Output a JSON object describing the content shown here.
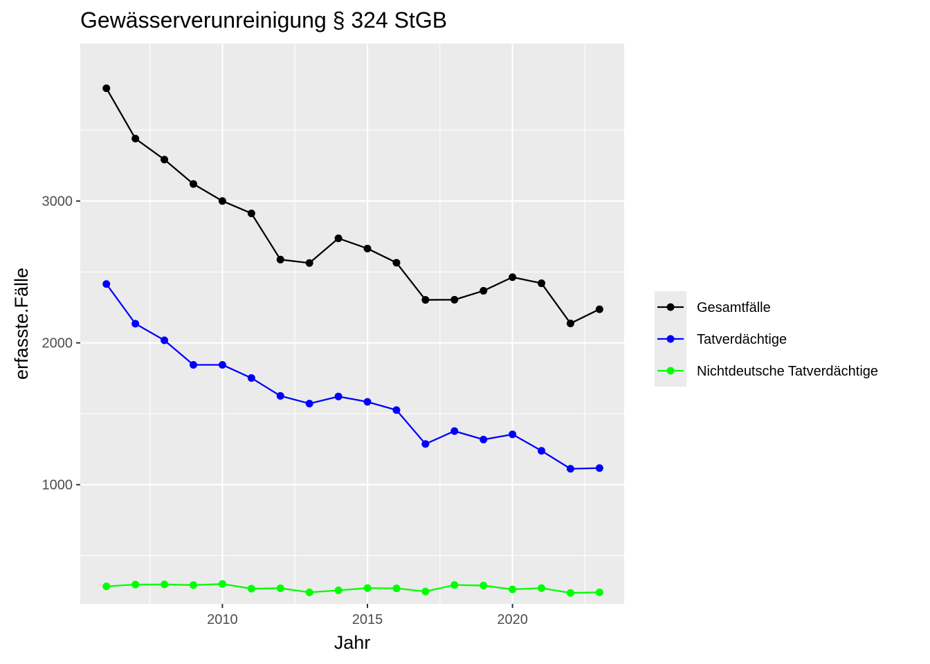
{
  "chart_data": {
    "type": "line",
    "title": "Gewässerverunreinigung § 324 StGB",
    "xlabel": "Jahr",
    "ylabel": "erfasste.Fälle",
    "x": [
      2006,
      2007,
      2008,
      2009,
      2010,
      2011,
      2012,
      2013,
      2014,
      2015,
      2016,
      2017,
      2018,
      2019,
      2020,
      2021,
      2022,
      2023
    ],
    "xlim": [
      2005.1,
      2023.85
    ],
    "ylim": [
      160,
      4110
    ],
    "x_ticks": [
      2010,
      2015,
      2020
    ],
    "x_tick_labels": [
      "2010",
      "2015",
      "2020"
    ],
    "y_ticks": [
      1000,
      2000,
      3000
    ],
    "y_tick_labels": [
      "1000",
      "2000",
      "3000"
    ],
    "grid": true,
    "legend_position": "right",
    "series": [
      {
        "name": "Gesamtfälle",
        "color": "#000000",
        "values": [
          3795,
          3440,
          3292,
          3120,
          3000,
          2913,
          2587,
          2563,
          2737,
          2665,
          2565,
          2303,
          2304,
          2367,
          2463,
          2420,
          2137,
          2237
        ]
      },
      {
        "name": "Tatverdächtige",
        "color": "#0000ff",
        "values": [
          2415,
          2135,
          2018,
          1845,
          1845,
          1752,
          1626,
          1572,
          1622,
          1584,
          1526,
          1287,
          1378,
          1318,
          1355,
          1239,
          1112,
          1117
        ]
      },
      {
        "name": "Nichtdeutsche Tatverdächtige",
        "color": "#00ff00",
        "values": [
          283,
          296,
          297,
          292,
          300,
          267,
          270,
          241,
          255,
          271,
          269,
          247,
          293,
          289,
          262,
          271,
          237,
          241
        ]
      }
    ]
  }
}
